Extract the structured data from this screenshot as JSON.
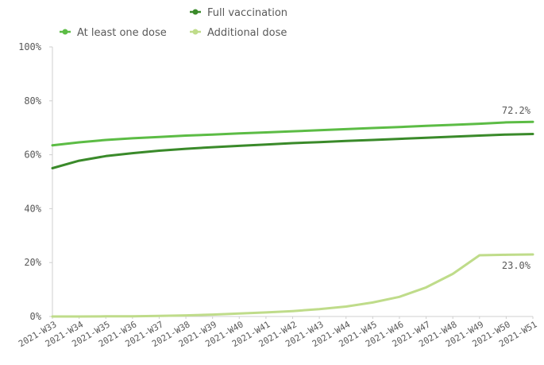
{
  "chart_data": {
    "type": "line",
    "title": "",
    "xlabel": "",
    "ylabel": "",
    "ylim": [
      0,
      100
    ],
    "y_tick_suffix": "%",
    "y_ticks": [
      0,
      20,
      40,
      60,
      80,
      100
    ],
    "grid": false,
    "legend_position": "top",
    "categories": [
      "2021-W33",
      "2021-W34",
      "2021-W35",
      "2021-W36",
      "2021-W37",
      "2021-W38",
      "2021-W39",
      "2021-W40",
      "2021-W41",
      "2021-W42",
      "2021-W43",
      "2021-W44",
      "2021-W45",
      "2021-W46",
      "2021-W47",
      "2021-W48",
      "2021-W49",
      "2021-W50",
      "2021-W51"
    ],
    "series": [
      {
        "name": "Full vaccination",
        "color": "#3a8a2a",
        "values": [
          55.0,
          57.8,
          59.5,
          60.6,
          61.5,
          62.2,
          62.8,
          63.3,
          63.8,
          64.3,
          64.7,
          65.1,
          65.5,
          65.9,
          66.3,
          66.7,
          67.1,
          67.5,
          67.7
        ]
      },
      {
        "name": "At least one dose",
        "color": "#5cbc45",
        "values": [
          63.5,
          64.6,
          65.5,
          66.1,
          66.6,
          67.1,
          67.5,
          67.9,
          68.3,
          68.7,
          69.1,
          69.5,
          69.9,
          70.3,
          70.7,
          71.1,
          71.5,
          72.0,
          72.2
        ],
        "end_label": "72.2%"
      },
      {
        "name": "Additional dose",
        "color": "#bfdc8a",
        "values": [
          0.0,
          0.0,
          0.05,
          0.1,
          0.2,
          0.4,
          0.7,
          1.1,
          1.5,
          2.0,
          2.7,
          3.7,
          5.2,
          7.3,
          10.8,
          15.8,
          22.7,
          22.9,
          23.0
        ],
        "end_label": "23.0%"
      }
    ]
  }
}
